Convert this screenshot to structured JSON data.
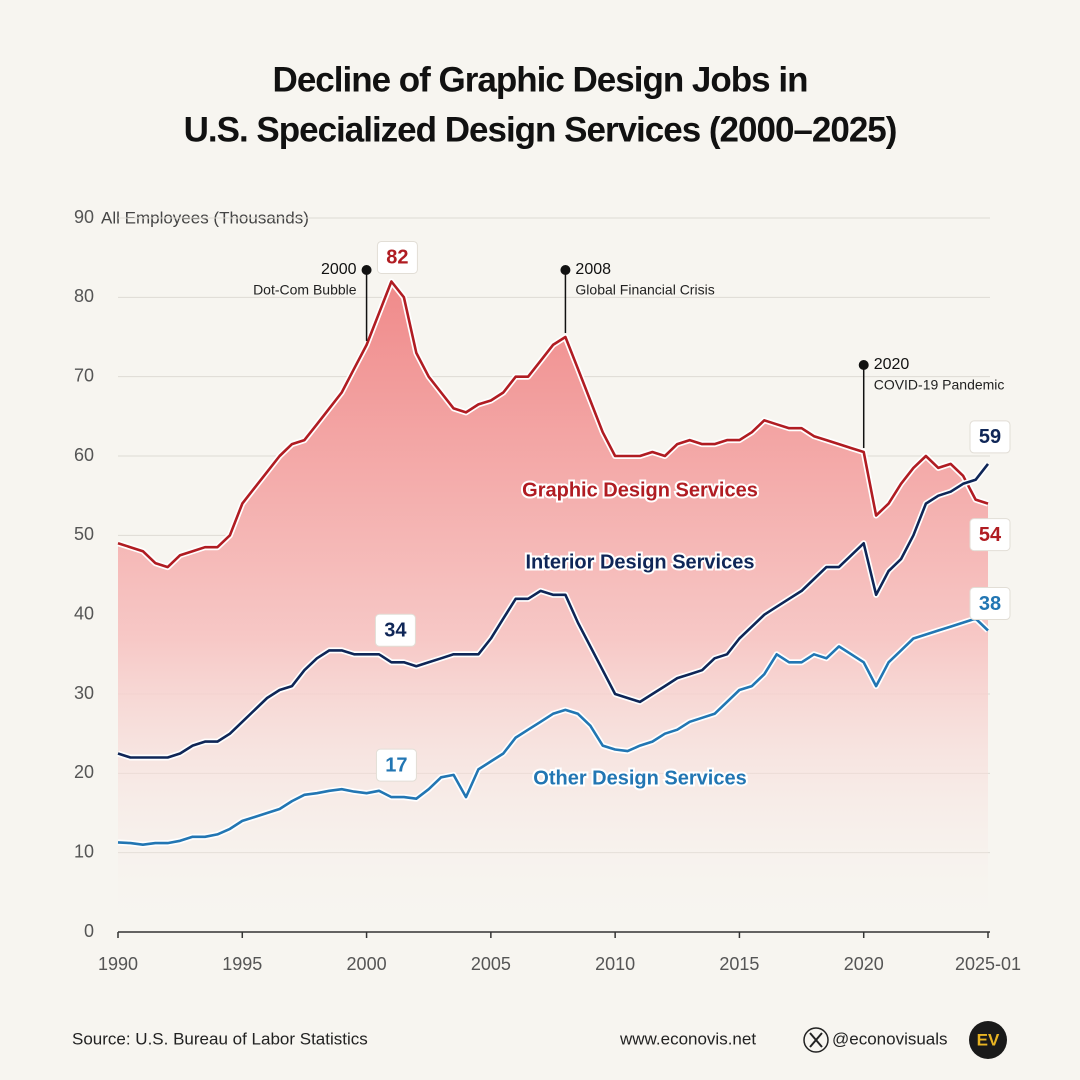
{
  "chart_data": {
    "type": "line",
    "title": [
      "Decline of Graphic Design Jobs in",
      "U.S. Specialized Design Services (2000–2025)"
    ],
    "ylabel": "All Employees (Thousands)",
    "x": [
      1990,
      1990.5,
      1991,
      1991.5,
      1992,
      1992.5,
      1993,
      1993.5,
      1994,
      1994.5,
      1995,
      1995.5,
      1996,
      1996.5,
      1997,
      1997.5,
      1998,
      1998.5,
      1999,
      1999.5,
      2000,
      2000.5,
      2001,
      2001.5,
      2002,
      2002.5,
      2003,
      2003.5,
      2004,
      2004.5,
      2005,
      2005.5,
      2006,
      2006.5,
      2007,
      2007.5,
      2008,
      2008.5,
      2009,
      2009.5,
      2010,
      2010.5,
      2011,
      2011.5,
      2012,
      2012.5,
      2013,
      2013.5,
      2014,
      2014.5,
      2015,
      2015.5,
      2016,
      2016.5,
      2017,
      2017.5,
      2018,
      2018.5,
      2019,
      2019.5,
      2020,
      2020.5,
      2021,
      2021.5,
      2022,
      2022.5,
      2023,
      2023.5,
      2024,
      2024.5,
      2025
    ],
    "series": [
      {
        "name": "Graphic Design Services",
        "color": "#b01c22",
        "fill": true,
        "values": [
          49,
          48.5,
          48,
          46.5,
          46,
          47.5,
          48,
          48.5,
          48.5,
          50,
          54,
          56,
          58,
          60,
          61.5,
          62,
          64,
          66,
          68,
          71,
          74,
          78,
          82,
          80,
          73,
          70,
          68,
          66,
          65.5,
          66.5,
          67,
          68,
          70,
          70,
          72,
          74,
          75,
          71,
          67,
          63,
          60,
          60,
          60,
          60.5,
          60,
          61.5,
          62,
          61.5,
          61.5,
          62,
          62,
          63,
          64.5,
          64,
          63.5,
          63.5,
          62.5,
          62,
          61.5,
          61,
          60.5,
          52.5,
          54,
          56.5,
          58.5,
          60,
          58.5,
          59,
          57.5,
          54.5,
          54
        ]
      },
      {
        "name": "Interior Design Services",
        "color": "#0f2657",
        "fill": false,
        "values": [
          22.5,
          22,
          22,
          22,
          22,
          22.5,
          23.5,
          24,
          24,
          25,
          26.5,
          28,
          29.5,
          30.5,
          31,
          33,
          34.5,
          35.5,
          35.5,
          35,
          35,
          35,
          34,
          34,
          33.5,
          34,
          34.5,
          35,
          35,
          35,
          37,
          39.5,
          42,
          42,
          43,
          42.5,
          42.5,
          39,
          36,
          33,
          30,
          29.5,
          29,
          30,
          31,
          32,
          32.5,
          33,
          34.5,
          35,
          37,
          38.5,
          40,
          41,
          42,
          43,
          44.5,
          46,
          46,
          47.5,
          49,
          42.5,
          45.5,
          47,
          50,
          54,
          55,
          55.5,
          56.5,
          57,
          59
        ]
      },
      {
        "name": "Other Design Services",
        "color": "#2276b3",
        "fill": false,
        "values": [
          11.3,
          11.2,
          11,
          11.2,
          11.2,
          11.5,
          12,
          12,
          12.3,
          13,
          14,
          14.5,
          15,
          15.5,
          16.5,
          17.3,
          17.5,
          17.8,
          18,
          17.7,
          17.5,
          17.8,
          17,
          17,
          16.8,
          18,
          19.5,
          19.8,
          17,
          20.5,
          21.5,
          22.5,
          24.5,
          25.5,
          26.5,
          27.5,
          28,
          27.5,
          26,
          23.5,
          23,
          22.8,
          23.5,
          24,
          25,
          25.5,
          26.5,
          27,
          27.5,
          29,
          30.5,
          31,
          32.5,
          35,
          34,
          34,
          35,
          34.5,
          36,
          35,
          34,
          31,
          34,
          35.5,
          37,
          37.5,
          38,
          38.5,
          39,
          39.5,
          38
        ]
      }
    ],
    "xlim": [
      1990,
      2025
    ],
    "xticks": [
      1990,
      1995,
      2000,
      2005,
      2010,
      2015,
      2020,
      {
        "value": 2025,
        "label": "2025-01"
      }
    ],
    "ylim": [
      0,
      90
    ],
    "yticks": [
      0,
      10,
      20,
      30,
      40,
      50,
      60,
      70,
      80,
      90
    ],
    "grid": true,
    "callouts": [
      {
        "series": 0,
        "x": 2001,
        "value": 82
      },
      {
        "series": 1,
        "x": 2001,
        "value": 34
      },
      {
        "series": 2,
        "x": 2001,
        "value": 17
      },
      {
        "series": 1,
        "x": 2025,
        "value": 59
      },
      {
        "series": 0,
        "x": 2025,
        "value": 54
      },
      {
        "series": 2,
        "x": 2025,
        "value": 38
      }
    ],
    "events": [
      {
        "x": 2000,
        "label": "Dot-Com Bubble"
      },
      {
        "x": 2008,
        "label": "Global Financial Crisis"
      },
      {
        "x": 2020,
        "label": "COVID-19 Pandemic"
      }
    ],
    "source": "Source: U.S. Bureau of Labor Statistics",
    "website": "www.econovis.net",
    "handle": "@econovisuals",
    "logo": "EV"
  }
}
